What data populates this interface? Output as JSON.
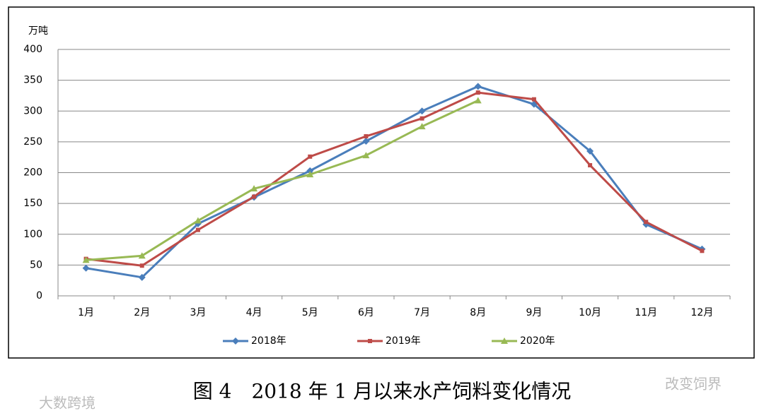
{
  "chart_data": {
    "type": "line",
    "title": "图 4　2018 年 1 月以来水产饲料变化情况",
    "y_label": "万吨",
    "annotations": [
      "大数跨境",
      "改变饲界"
    ],
    "categories": [
      "1月",
      "2月",
      "3月",
      "4月",
      "5月",
      "6月",
      "7月",
      "8月",
      "9月",
      "10月",
      "11月",
      "12月"
    ],
    "series": [
      {
        "name": "2018年",
        "color": "#4a7ebb",
        "marker": "diamond",
        "values": [
          45,
          30,
          117,
          160,
          203,
          251,
          300,
          340,
          311,
          235,
          116,
          76
        ]
      },
      {
        "name": "2019年",
        "color": "#be4b48",
        "marker": "square",
        "values": [
          60,
          49,
          107,
          161,
          226,
          259,
          288,
          330,
          319,
          212,
          120,
          73
        ]
      },
      {
        "name": "2020年",
        "color": "#98b954",
        "marker": "triangle",
        "values": [
          58,
          65,
          122,
          174,
          197,
          228,
          275,
          317,
          null,
          null,
          null,
          null
        ]
      }
    ],
    "ylim": [
      0,
      400
    ],
    "yticks": [
      0,
      50,
      100,
      150,
      200,
      250,
      300,
      350,
      400
    ],
    "grid": true,
    "legend": "bottom"
  }
}
